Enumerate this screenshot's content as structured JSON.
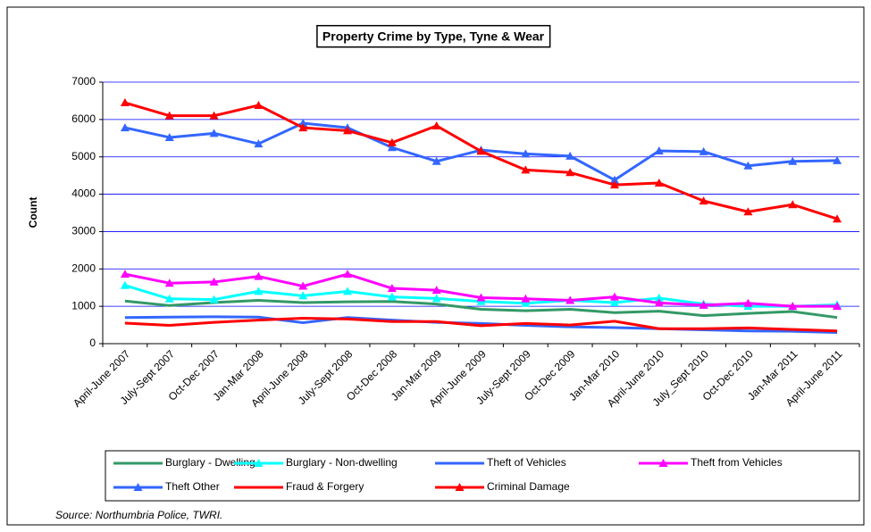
{
  "chart_data": {
    "type": "line",
    "title": "Property Crime by Type, Tyne & Wear",
    "y_label": "Count",
    "source": "Source: Northumbria Police, TWRI.",
    "categories": [
      "April-June 2007",
      "July-Sept 2007",
      "Oct-Dec 2007",
      "Jan-Mar 2008",
      "April-June 2008",
      "July-Sept 2008",
      "Oct-Dec 2008",
      "Jan-Mar 2009",
      "April-June 2009",
      "July-Sept 2009",
      "Oct-Dec 2009",
      "Jan-Mar 2010",
      "April-June 2010",
      "July_Sept 2010",
      "Oct-Dec 2010",
      "Jan-Mar 2011",
      "April-June 2011"
    ],
    "ylim": [
      0,
      7000
    ],
    "yticks": [
      0,
      1000,
      2000,
      3000,
      4000,
      5000,
      6000,
      7000
    ],
    "grid": true,
    "series": [
      {
        "name": "Burglary - Dwelling",
        "color": "#339966",
        "marker": "none",
        "values": [
          1140,
          1020,
          1100,
          1160,
          1100,
          1120,
          1130,
          1060,
          920,
          880,
          920,
          830,
          870,
          750,
          810,
          860,
          700
        ]
      },
      {
        "name": "Burglary - Non-dwelling",
        "color": "#00ffff",
        "marker": "triangle",
        "values": [
          1560,
          1200,
          1180,
          1400,
          1280,
          1400,
          1250,
          1210,
          1130,
          1080,
          1160,
          1100,
          1220,
          1060,
          1000,
          1000,
          1040
        ]
      },
      {
        "name": "Theft of Vehicles",
        "color": "#3366ff",
        "marker": "none",
        "values": [
          700,
          710,
          720,
          710,
          560,
          700,
          630,
          570,
          540,
          490,
          450,
          430,
          400,
          370,
          340,
          330,
          300
        ]
      },
      {
        "name": "Theft from Vehicles",
        "color": "#ff00ff",
        "marker": "triangle",
        "values": [
          1860,
          1620,
          1650,
          1800,
          1540,
          1860,
          1480,
          1430,
          1230,
          1200,
          1160,
          1250,
          1090,
          1030,
          1080,
          1000,
          1000
        ]
      },
      {
        "name": "Theft Other",
        "color": "#3366ff",
        "marker": "triangle",
        "values": [
          5780,
          5520,
          5630,
          5350,
          5900,
          5780,
          5250,
          4880,
          5180,
          5080,
          5020,
          4380,
          5160,
          5140,
          4760,
          4880,
          4900
        ]
      },
      {
        "name": "Fraud & Forgery",
        "color": "#ff0000",
        "marker": "none",
        "values": [
          550,
          490,
          570,
          630,
          680,
          660,
          590,
          590,
          480,
          540,
          500,
          600,
          400,
          400,
          420,
          380,
          340
        ]
      },
      {
        "name": "Criminal Damage",
        "color": "#ff0000",
        "marker": "triangle",
        "values": [
          6450,
          6100,
          6100,
          6380,
          5780,
          5700,
          5380,
          5830,
          5150,
          4650,
          4580,
          4250,
          4300,
          3820,
          3530,
          3720,
          3340
        ]
      }
    ]
  }
}
